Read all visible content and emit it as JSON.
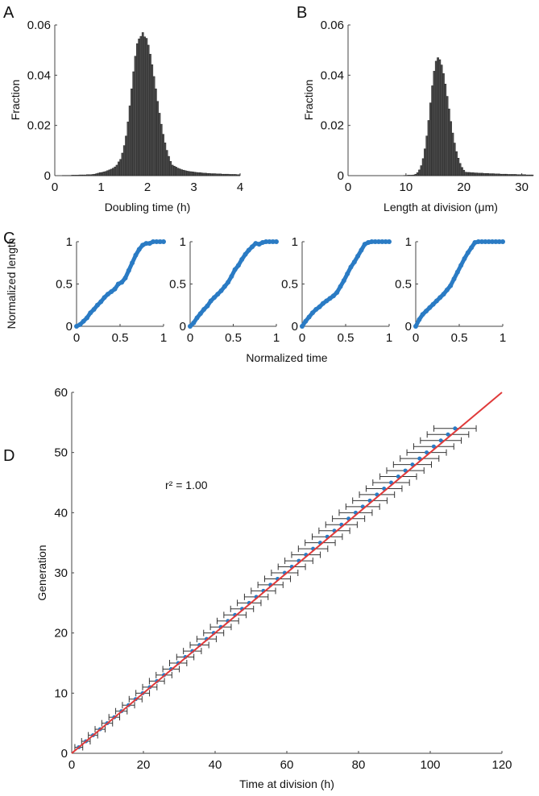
{
  "panel_labels": [
    "A",
    "B",
    "C",
    "D"
  ],
  "colors": {
    "bars": "#4a4a4a",
    "bar_edge": "#1a1a1a",
    "points": "#2a7bc4",
    "fit_line": "#e03a3a",
    "error_bars": "#333333",
    "axes": "#444444"
  },
  "chart_data": [
    {
      "id": "A",
      "type": "bar",
      "xlabel": "Doubling time (h)",
      "ylabel": "Fraction",
      "xlim": [
        0,
        4
      ],
      "ylim": [
        0,
        0.06
      ],
      "xticks": [
        "0",
        "1",
        "2",
        "3",
        "4"
      ],
      "yticks": [
        "0",
        "0.02",
        "0.04",
        "0.06"
      ],
      "bin_start": 0,
      "bin_width": 0.04,
      "values": [
        0,
        0,
        0,
        0,
        0.0001,
        0.0001,
        0.0001,
        0.0001,
        0.0001,
        0.0002,
        0.0002,
        0.0002,
        0.0002,
        0.0003,
        0.0003,
        0.0003,
        0.0003,
        0.0004,
        0.0004,
        0.0004,
        0.0005,
        0.0006,
        0.0008,
        0.001,
        0.0012,
        0.0013,
        0.0015,
        0.0017,
        0.002,
        0.0023,
        0.0026,
        0.003,
        0.0035,
        0.0042,
        0.0055,
        0.0065,
        0.009,
        0.012,
        0.0158,
        0.0214,
        0.0278,
        0.0346,
        0.0414,
        0.0476,
        0.0526,
        0.0545,
        0.0555,
        0.057,
        0.0553,
        0.0547,
        0.052,
        0.0484,
        0.0442,
        0.0395,
        0.0346,
        0.0296,
        0.0249,
        0.0205,
        0.0165,
        0.0131,
        0.0101,
        0.0077,
        0.0057,
        0.0042,
        0.0038,
        0.0034,
        0.003,
        0.0027,
        0.0024,
        0.0022,
        0.002,
        0.0018,
        0.0017,
        0.0016,
        0.0015,
        0.0014,
        0.0013,
        0.0012,
        0.0012,
        0.0011,
        0.001,
        0.001,
        0.0009,
        0.0009,
        0.0008,
        0.0008,
        0.0008,
        0.0007,
        0.0007,
        0.0007,
        0.0006,
        0.0006,
        0.0006,
        0.0006,
        0.0005,
        0.0005,
        0.0005,
        0.0005,
        0.0004,
        0.0004
      ]
    },
    {
      "id": "B",
      "type": "bar",
      "xlabel": "Length at division (μm)",
      "ylabel": "Fraction",
      "xlim": [
        0,
        32
      ],
      "ylim": [
        0,
        0.06
      ],
      "xticks": [
        "0",
        "10",
        "20",
        "30"
      ],
      "yticks": [
        "0",
        "0.02",
        "0.04",
        "0.06"
      ],
      "bin_start": 0,
      "bin_width": 0.32,
      "values": [
        0,
        0,
        0,
        0,
        0,
        0,
        0,
        0,
        0,
        0,
        0,
        0,
        0,
        0,
        0,
        0,
        0,
        0,
        0,
        0,
        0,
        0,
        0,
        0,
        0,
        0,
        0,
        0,
        0,
        0,
        0.0001,
        0.0001,
        0.0002,
        0.0002,
        0.0002,
        0.0003,
        0.0006,
        0.0012,
        0.0023,
        0.004,
        0.0068,
        0.0107,
        0.0158,
        0.022,
        0.029,
        0.0358,
        0.0416,
        0.0456,
        0.047,
        0.0462,
        0.0441,
        0.0407,
        0.0365,
        0.0316,
        0.0266,
        0.0216,
        0.017,
        0.013,
        0.0096,
        0.007,
        0.0049,
        0.0033,
        0.0022,
        0.0014,
        0.0013,
        0.0013,
        0.0012,
        0.0012,
        0.0011,
        0.0011,
        0.001,
        0.001,
        0.001,
        0.0009,
        0.0009,
        0.0009,
        0.0008,
        0.0008,
        0.0008,
        0.0007,
        0.0007,
        0.0007,
        0.0006,
        0.0006,
        0.0006,
        0.0006,
        0.0005,
        0.0005,
        0.0005,
        0.0005,
        0.0005,
        0.0004,
        0.0004,
        0.0004,
        0.0004,
        0.0004,
        0.0003,
        0.0003,
        0.0003,
        0.0003
      ]
    },
    {
      "id": "C",
      "type": "scatter",
      "xlabel": "Normalized time",
      "ylabel": "Normalized length",
      "xlim": [
        0,
        1
      ],
      "ylim": [
        0,
        1
      ],
      "xticks": [
        "0",
        "0.5",
        "1"
      ],
      "yticks": [
        "0",
        "0.5",
        "1"
      ],
      "x": [
        0,
        0.04,
        0.08,
        0.12,
        0.16,
        0.2,
        0.24,
        0.28,
        0.32,
        0.36,
        0.4,
        0.44,
        0.48,
        0.52,
        0.56,
        0.6,
        0.64,
        0.68,
        0.72,
        0.76,
        0.8,
        0.84,
        0.88,
        0.92,
        0.96,
        1
      ],
      "series": [
        {
          "values": [
            0,
            0.02,
            0.06,
            0.1,
            0.16,
            0.2,
            0.25,
            0.29,
            0.34,
            0.38,
            0.41,
            0.44,
            0.5,
            0.52,
            0.57,
            0.66,
            0.75,
            0.84,
            0.91,
            0.96,
            0.98,
            0.98,
            1,
            1,
            1,
            1
          ]
        },
        {
          "values": [
            0,
            0.04,
            0.1,
            0.15,
            0.2,
            0.24,
            0.3,
            0.34,
            0.38,
            0.42,
            0.47,
            0.52,
            0.59,
            0.67,
            0.72,
            0.79,
            0.85,
            0.9,
            0.94,
            0.98,
            0.97,
            0.99,
            1,
            1,
            1,
            1
          ]
        },
        {
          "values": [
            0,
            0.06,
            0.11,
            0.16,
            0.2,
            0.23,
            0.27,
            0.3,
            0.33,
            0.36,
            0.4,
            0.47,
            0.54,
            0.62,
            0.7,
            0.76,
            0.83,
            0.9,
            0.97,
            0.99,
            1,
            1,
            1,
            1,
            1,
            1
          ]
        },
        {
          "values": [
            0,
            0.08,
            0.14,
            0.18,
            0.22,
            0.26,
            0.3,
            0.34,
            0.38,
            0.43,
            0.48,
            0.56,
            0.64,
            0.72,
            0.8,
            0.87,
            0.93,
            0.99,
            1,
            1,
            1,
            1,
            1,
            1,
            1,
            1
          ]
        }
      ]
    },
    {
      "id": "D",
      "type": "scatter",
      "xlabel": "Time at division (h)",
      "ylabel": "Generation",
      "xlim": [
        0,
        120
      ],
      "ylim": [
        0,
        60
      ],
      "xticks": [
        "0",
        "20",
        "40",
        "60",
        "80",
        "100",
        "120"
      ],
      "yticks": [
        "0",
        "10",
        "20",
        "30",
        "40",
        "50",
        "60"
      ],
      "annotation": "r² = 1.00",
      "generation": [
        1,
        2,
        3,
        4,
        5,
        6,
        7,
        8,
        9,
        10,
        11,
        12,
        13,
        14,
        15,
        16,
        17,
        18,
        19,
        20,
        21,
        22,
        23,
        24,
        25,
        26,
        27,
        28,
        29,
        30,
        31,
        32,
        33,
        34,
        35,
        36,
        37,
        38,
        39,
        40,
        41,
        42,
        43,
        44,
        45,
        46,
        47,
        48,
        49,
        50,
        51,
        52,
        53,
        54
      ],
      "time": [
        1.98,
        3.96,
        5.94,
        7.92,
        9.9,
        11.88,
        13.86,
        15.84,
        17.82,
        19.8,
        21.78,
        23.76,
        25.74,
        27.72,
        29.7,
        31.68,
        33.66,
        35.64,
        37.62,
        39.6,
        41.58,
        43.56,
        45.54,
        47.52,
        49.5,
        51.48,
        53.46,
        55.44,
        57.42,
        59.4,
        61.38,
        63.36,
        65.34,
        67.32,
        69.3,
        71.28,
        73.26,
        75.24,
        77.22,
        79.2,
        81.18,
        83.16,
        85.14,
        87.12,
        89.1,
        91.08,
        93.06,
        95.04,
        97.02,
        99,
        100.98,
        102.96,
        104.94,
        106.92
      ],
      "time_error": [
        1.1,
        1.2,
        1.3,
        1.4,
        1.5,
        1.5,
        1.6,
        1.7,
        1.8,
        1.9,
        2.0,
        2.1,
        2.2,
        2.3,
        2.4,
        2.4,
        2.5,
        2.6,
        2.7,
        2.8,
        2.9,
        3.0,
        3.1,
        3.2,
        3.3,
        3.3,
        3.4,
        3.5,
        3.6,
        3.7,
        3.8,
        3.9,
        4.0,
        4.1,
        4.2,
        4.2,
        4.3,
        4.4,
        4.5,
        4.6,
        4.7,
        4.8,
        4.9,
        5.0,
        5.1,
        5.1,
        5.2,
        5.3,
        5.4,
        5.5,
        5.6,
        5.7,
        5.8,
        5.9
      ],
      "fit_line": {
        "x": [
          0,
          120
        ],
        "y": [
          0,
          60
        ]
      }
    }
  ]
}
